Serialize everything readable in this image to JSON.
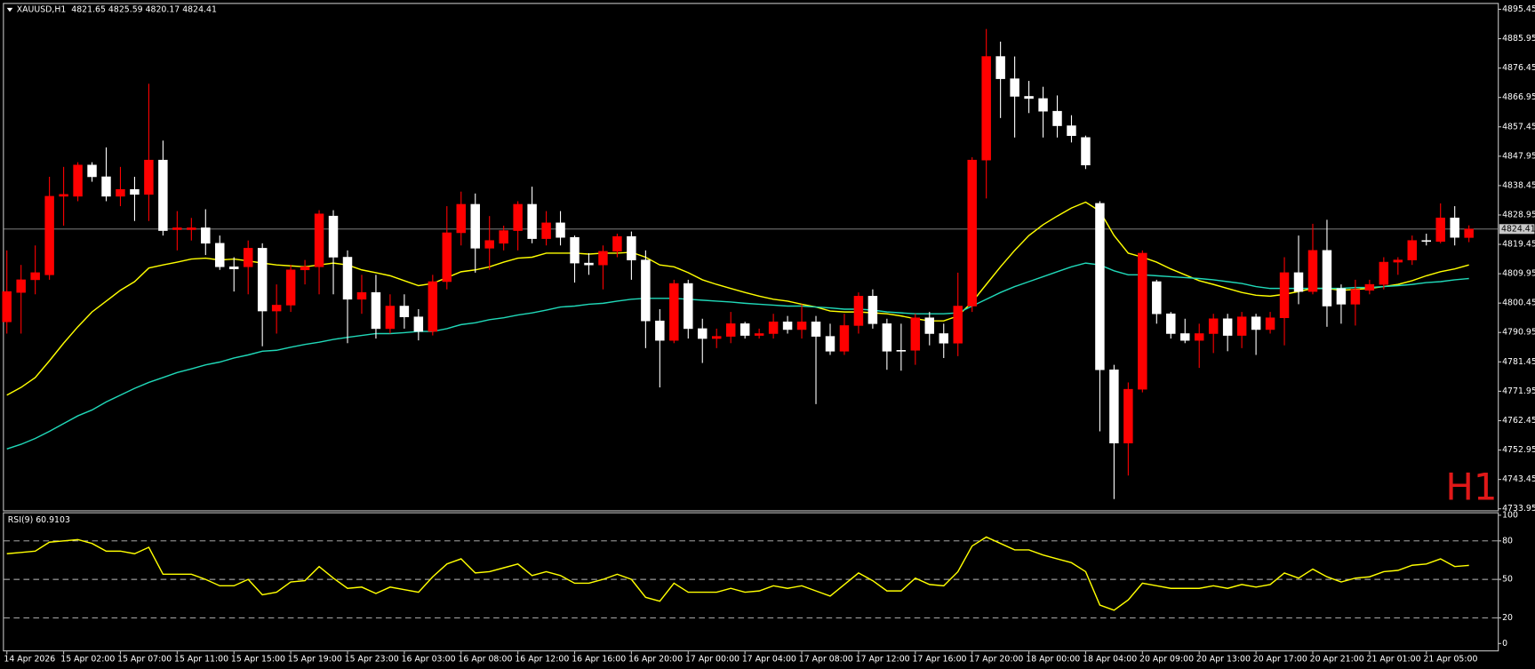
{
  "chart_data": [
    {
      "type": "candlestick",
      "title": "XAUUSD,H1  4821.65 4825.59 4820.17 4824.41",
      "watermark": "H1",
      "categories": [
        "14 Apr 2026",
        null,
        null,
        null,
        "15 Apr 02:00",
        null,
        null,
        null,
        "15 Apr 07:00",
        null,
        null,
        null,
        "15 Apr 11:00",
        null,
        null,
        null,
        "15 Apr 15:00",
        null,
        null,
        null,
        "15 Apr 19:00",
        null,
        null,
        null,
        "15 Apr 23:00",
        null,
        null,
        null,
        "16 Apr 03:00",
        null,
        null,
        null,
        "16 Apr 08:00",
        null,
        null,
        null,
        "16 Apr 12:00",
        null,
        null,
        null,
        "16 Apr 16:00",
        null,
        null,
        null,
        "16 Apr 20:00",
        null,
        null,
        null,
        "17 Apr 00:00",
        null,
        null,
        null,
        "17 Apr 04:00",
        null,
        null,
        null,
        "17 Apr 08:00",
        null,
        null,
        null,
        "17 Apr 12:00",
        null,
        null,
        null,
        "17 Apr 16:00",
        null,
        null,
        null,
        "17 Apr 20:00",
        null,
        null,
        null,
        "18 Apr 00:00",
        null,
        null,
        null,
        "18 Apr 04:00",
        null,
        null,
        null,
        "20 Apr 09:00",
        null,
        null,
        null,
        "20 Apr 13:00",
        null,
        null,
        null,
        "20 Apr 17:00",
        null,
        null,
        null,
        "20 Apr 21:00",
        null,
        null,
        null,
        "21 Apr 01:00",
        null,
        null,
        null,
        "21 Apr 05:00",
        null,
        null,
        null
      ],
      "open": [
        4794.4,
        4803.9,
        4808.0,
        4809.6,
        4835.0,
        4835.0,
        4845.1,
        4841.3,
        4835.0,
        4837.2,
        4835.6,
        4846.7,
        4824.2,
        4824.2,
        4824.8,
        4819.8,
        4812.2,
        4812.2,
        4818.2,
        4797.9,
        4799.8,
        4811.2,
        4812.2,
        4828.6,
        4815.3,
        4801.7,
        4803.9,
        4792.2,
        4799.5,
        4796.0,
        4791.3,
        4807.4,
        4823.2,
        4832.4,
        4818.2,
        4819.8,
        4823.9,
        4832.4,
        4821.3,
        4826.4,
        4821.7,
        4813.4,
        4812.8,
        4817.2,
        4822.0,
        4814.4,
        4794.7,
        4788.4,
        4806.8,
        4792.2,
        4789.0,
        4789.7,
        4793.8,
        4790.0,
        4790.6,
        4794.4,
        4791.9,
        4794.4,
        4789.7,
        4784.9,
        4793.2,
        4802.7,
        4793.8,
        4785.2,
        4785.2,
        4795.7,
        4790.6,
        4787.5,
        4799.5,
        4846.7,
        4880.2,
        4873.0,
        4867.3,
        4866.6,
        4862.5,
        4857.8,
        4854.0,
        4832.7,
        4778.9,
        4755.2,
        4772.6,
        4807.4,
        4797.0,
        4790.6,
        4788.4,
        4790.6,
        4795.4,
        4790.0,
        4796.0,
        4791.9,
        4795.7,
        4810.3,
        4804.2,
        4817.5,
        4805.2,
        4800.1,
        4804.6,
        4806.5,
        4813.7,
        4814.4,
        4820.7,
        4820.4,
        4828.0,
        4821.65
      ],
      "high": [
        4817.5,
        4812.8,
        4819.1,
        4841.3,
        4844.5,
        4846.0,
        4846.0,
        4850.8,
        4844.5,
        4841.3,
        4871.4,
        4853.0,
        4830.2,
        4828.0,
        4830.8,
        4822.3,
        4815.3,
        4820.7,
        4819.8,
        4806.5,
        4812.8,
        4814.4,
        4830.5,
        4830.5,
        4817.5,
        4809.6,
        4809.6,
        4803.3,
        4803.3,
        4798.5,
        4809.6,
        4831.8,
        4836.5,
        4835.9,
        4828.6,
        4825.5,
        4833.4,
        4838.1,
        4830.2,
        4830.2,
        4822.3,
        4816.6,
        4819.1,
        4822.9,
        4823.6,
        4817.5,
        4798.5,
        4808.0,
        4808.0,
        4795.4,
        4792.2,
        4797.6,
        4794.4,
        4792.2,
        4797.0,
        4796.3,
        4800.1,
        4796.3,
        4793.8,
        4797.0,
        4803.9,
        4804.9,
        4795.4,
        4793.8,
        4797.0,
        4797.6,
        4793.8,
        4810.3,
        4847.6,
        4889.1,
        4885.0,
        4880.2,
        4872.3,
        4870.4,
        4867.6,
        4861.2,
        4854.6,
        4833.4,
        4780.5,
        4774.8,
        4817.5,
        4808.0,
        4797.6,
        4795.4,
        4793.8,
        4797.0,
        4797.0,
        4797.6,
        4797.0,
        4797.6,
        4815.3,
        4822.3,
        4826.1,
        4827.4,
        4806.5,
        4808.0,
        4808.0,
        4815.3,
        4815.3,
        4822.3,
        4822.9,
        4832.7,
        4831.8,
        4825.59
      ],
      "low": [
        4790.6,
        4790.6,
        4803.3,
        4808.0,
        4825.5,
        4833.4,
        4839.7,
        4833.4,
        4831.8,
        4827.0,
        4827.0,
        4822.3,
        4817.5,
        4820.7,
        4816.0,
        4811.2,
        4804.2,
        4803.3,
        4786.5,
        4790.6,
        4797.6,
        4806.5,
        4803.3,
        4803.3,
        4787.5,
        4797.0,
        4789.0,
        4790.6,
        4792.2,
        4788.4,
        4790.0,
        4804.9,
        4819.1,
        4810.3,
        4811.2,
        4817.5,
        4817.5,
        4819.8,
        4819.1,
        4819.1,
        4807.1,
        4809.6,
        4804.9,
        4815.3,
        4808.0,
        4785.9,
        4773.2,
        4787.5,
        4789.0,
        4781.1,
        4785.9,
        4787.5,
        4789.0,
        4789.0,
        4789.0,
        4790.6,
        4789.0,
        4767.8,
        4783.7,
        4783.7,
        4790.6,
        4792.2,
        4778.9,
        4778.6,
        4780.5,
        4786.8,
        4782.7,
        4783.3,
        4797.6,
        4834.3,
        4860.3,
        4854.0,
        4861.9,
        4854.0,
        4854.0,
        4852.4,
        4843.8,
        4759.0,
        4737.1,
        4744.7,
        4771.6,
        4793.8,
        4789.0,
        4787.5,
        4779.5,
        4784.3,
        4784.9,
        4785.9,
        4783.7,
        4790.6,
        4786.8,
        4800.1,
        4803.3,
        4792.8,
        4793.8,
        4793.2,
        4803.3,
        4804.9,
        4809.6,
        4812.8,
        4819.1,
        4819.8,
        4819.1,
        4820.17
      ],
      "close": [
        4804.2,
        4808.0,
        4810.3,
        4835.0,
        4835.6,
        4845.1,
        4841.3,
        4835.0,
        4837.2,
        4835.6,
        4846.7,
        4823.9,
        4824.8,
        4824.8,
        4819.8,
        4812.2,
        4811.5,
        4818.2,
        4797.9,
        4799.8,
        4811.2,
        4812.2,
        4829.3,
        4815.3,
        4801.7,
        4803.9,
        4792.2,
        4799.5,
        4796.0,
        4791.3,
        4807.4,
        4823.2,
        4832.4,
        4818.2,
        4820.7,
        4823.9,
        4832.4,
        4821.3,
        4826.4,
        4821.7,
        4813.4,
        4812.8,
        4817.2,
        4822.0,
        4814.4,
        4794.7,
        4788.4,
        4806.8,
        4792.2,
        4789.0,
        4789.7,
        4793.8,
        4790.0,
        4790.6,
        4794.4,
        4791.9,
        4794.4,
        4789.7,
        4784.9,
        4793.2,
        4802.7,
        4793.8,
        4784.9,
        4784.9,
        4795.7,
        4790.6,
        4787.5,
        4799.5,
        4846.7,
        4880.2,
        4873.0,
        4867.3,
        4866.6,
        4862.5,
        4857.8,
        4854.6,
        4845.1,
        4778.9,
        4755.2,
        4772.6,
        4816.6,
        4797.0,
        4790.6,
        4788.4,
        4790.6,
        4795.4,
        4790.0,
        4796.0,
        4791.9,
        4795.7,
        4810.3,
        4804.2,
        4817.5,
        4799.5,
        4800.1,
        4804.9,
        4806.5,
        4813.7,
        4814.4,
        4820.7,
        4820.4,
        4828.0,
        4821.7,
        4824.41
      ],
      "up_color": "#ff0000",
      "down_color": "#ffffff",
      "series": [
        {
          "color": "#ffff00",
          "values": [
            4770.7,
            4773.2,
            4776.4,
            4781.8,
            4787.5,
            4792.8,
            4797.6,
            4801.1,
            4804.6,
            4807.4,
            4811.8,
            4812.8,
            4813.7,
            4814.7,
            4815.0,
            4814.4,
            4814.7,
            4814.1,
            4813.4,
            4812.8,
            4812.5,
            4812.2,
            4812.8,
            4813.4,
            4812.8,
            4811.2,
            4810.3,
            4809.3,
            4807.7,
            4806.1,
            4806.8,
            4808.7,
            4810.6,
            4811.2,
            4812.2,
            4813.7,
            4815.0,
            4815.3,
            4816.6,
            4816.6,
            4816.6,
            4816.3,
            4816.6,
            4816.6,
            4816.9,
            4815.3,
            4812.8,
            4812.2,
            4810.3,
            4808.0,
            4806.5,
            4805.2,
            4803.9,
            4802.7,
            4801.7,
            4801.1,
            4800.1,
            4799.2,
            4797.9,
            4797.6,
            4797.6,
            4797.3,
            4797.0,
            4796.3,
            4795.4,
            4794.7,
            4794.7,
            4796.3,
            4800.8,
            4806.5,
            4812.2,
            4817.5,
            4822.3,
            4825.8,
            4828.6,
            4831.2,
            4833.1,
            4830.2,
            4822.3,
            4816.6,
            4815.3,
            4813.7,
            4811.5,
            4809.6,
            4807.7,
            4806.5,
            4805.2,
            4803.9,
            4803.0,
            4802.7,
            4803.3,
            4804.2,
            4805.2,
            4805.2,
            4804.6,
            4804.9,
            4805.2,
            4805.8,
            4806.5,
            4807.7,
            4809.3,
            4810.6,
            4811.5,
            4812.8
          ]
        },
        {
          "color": "#20d8b8",
          "values": [
            4753.3,
            4754.8,
            4756.7,
            4759.0,
            4761.5,
            4764.0,
            4765.9,
            4768.5,
            4770.7,
            4772.9,
            4774.8,
            4776.4,
            4778.0,
            4779.2,
            4780.5,
            4781.4,
            4782.7,
            4783.7,
            4784.9,
            4785.2,
            4786.2,
            4787.1,
            4787.8,
            4788.7,
            4789.4,
            4790.0,
            4790.6,
            4790.6,
            4790.9,
            4791.3,
            4791.3,
            4792.2,
            4793.5,
            4794.1,
            4795.1,
            4795.7,
            4796.6,
            4797.3,
            4798.2,
            4799.2,
            4799.5,
            4800.1,
            4800.4,
            4801.1,
            4801.7,
            4802.0,
            4802.0,
            4802.0,
            4801.7,
            4801.4,
            4801.1,
            4800.8,
            4800.4,
            4800.1,
            4799.8,
            4799.5,
            4799.5,
            4799.2,
            4798.9,
            4798.5,
            4798.5,
            4798.2,
            4797.6,
            4797.3,
            4797.0,
            4797.0,
            4797.0,
            4797.3,
            4799.5,
            4801.7,
            4803.9,
            4805.8,
            4807.4,
            4809.0,
            4810.6,
            4812.2,
            4813.4,
            4812.8,
            4810.9,
            4809.6,
            4809.6,
            4809.3,
            4809.0,
            4808.7,
            4808.4,
            4808.0,
            4807.4,
            4806.8,
            4805.8,
            4805.2,
            4805.2,
            4805.2,
            4805.2,
            4805.2,
            4805.2,
            4805.5,
            4805.5,
            4805.8,
            4806.1,
            4806.5,
            4807.1,
            4807.4,
            4808.0,
            4808.4
          ]
        }
      ],
      "current_price": 4824.41,
      "ylim": [
        4733.3,
        4897.35
      ],
      "yticks": [
        4895.45,
        4885.95,
        4876.45,
        4866.95,
        4857.45,
        4847.95,
        4838.45,
        4828.95,
        4819.45,
        4809.95,
        4800.45,
        4790.95,
        4781.45,
        4771.95,
        4762.45,
        4752.95,
        4743.45,
        4733.95
      ]
    },
    {
      "type": "line",
      "title": "RSI(9) 60.9103",
      "color": "#ffff00",
      "values": [
        70,
        71,
        72,
        79,
        80,
        81,
        78,
        72,
        72,
        70,
        75,
        54,
        54,
        54,
        50,
        45,
        45,
        50,
        38,
        40,
        48,
        49,
        60,
        51,
        43,
        44,
        39,
        44,
        42,
        40,
        52,
        62,
        66,
        55,
        56,
        59,
        62,
        53,
        56,
        53,
        47,
        47,
        50,
        54,
        50,
        36,
        33,
        47,
        40,
        40,
        40,
        43,
        40,
        41,
        45,
        43,
        45,
        41,
        37,
        46,
        55,
        49,
        41,
        41,
        51,
        46,
        45,
        56,
        76,
        83,
        78,
        73,
        73,
        69,
        66,
        63,
        56,
        30,
        26,
        34,
        47,
        45,
        43,
        43,
        43,
        45,
        43,
        46,
        44,
        46,
        55,
        51,
        58,
        52,
        48,
        51,
        52,
        56,
        57,
        61,
        62,
        66,
        60,
        60.91
      ],
      "ylim": [
        0,
        100
      ],
      "yticks": [
        100,
        80,
        50,
        20,
        0
      ],
      "levels": [
        80,
        50,
        20
      ]
    }
  ]
}
